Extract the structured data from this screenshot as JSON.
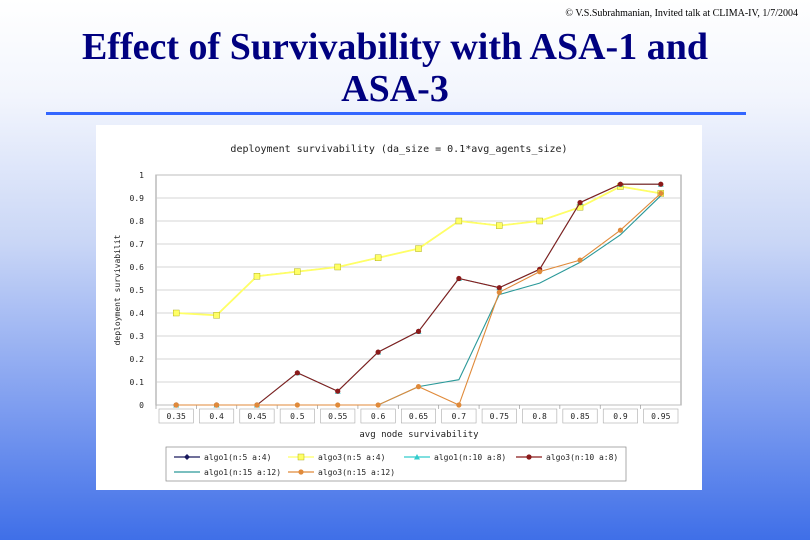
{
  "slide": {
    "copyright": "© V.S.Subrahmanian, Invited talk at CLIMA-IV, 1/7/2004",
    "title_line1": "Effect of Survivability with ASA-1 and",
    "title_line2": "ASA-3"
  },
  "chart_data": {
    "type": "line",
    "title": "deployment survivability (da_size = 0.1*avg_agents_size)",
    "xlabel": "avg node survivability",
    "ylabel": "deployment survivabilit",
    "categories": [
      "0.35",
      "0.4",
      "0.45",
      "0.5",
      "0.55",
      "0.6",
      "0.65",
      "0.7",
      "0.75",
      "0.8",
      "0.85",
      "0.9",
      "0.95"
    ],
    "y_ticks": [
      "0",
      "0.1",
      "0.2",
      "0.3",
      "0.4",
      "0.5",
      "0.6",
      "0.7",
      "0.8",
      "0.9",
      "1"
    ],
    "ylim": [
      0,
      1
    ],
    "grid": true,
    "legend_position": "bottom",
    "series": [
      {
        "name": "algo1(n:5 a:4)",
        "color": "#1a1a5e",
        "marker": "diamond",
        "values": [
          0.4,
          0.39,
          0.56,
          0.58,
          0.6,
          0.64,
          0.68,
          0.8,
          0.78,
          0.8,
          0.86,
          0.95,
          0.92
        ]
      },
      {
        "name": "algo3(n:5 a:4)",
        "color": "#ffff66",
        "marker": "square",
        "values": [
          0.4,
          0.39,
          0.56,
          0.58,
          0.6,
          0.64,
          0.68,
          0.8,
          0.78,
          0.8,
          0.86,
          0.95,
          0.92
        ]
      },
      {
        "name": "algo1(n:10 a:8)",
        "color": "#33cccc",
        "marker": "triangle",
        "values": [
          0.0,
          0.0,
          0.0,
          0.14,
          0.06,
          0.23,
          0.32,
          0.55,
          0.51,
          0.59,
          0.88,
          0.96,
          0.96
        ]
      },
      {
        "name": "algo3(n:10 a:8)",
        "color": "#8b1a1a",
        "marker": "circle",
        "values": [
          0.0,
          0.0,
          0.0,
          0.14,
          0.06,
          0.23,
          0.32,
          0.55,
          0.51,
          0.59,
          0.88,
          0.96,
          0.96
        ]
      },
      {
        "name": "algo1(n:15 a:12)",
        "color": "#2b9999",
        "marker": "none",
        "values": [
          0.0,
          0.0,
          0.0,
          0.0,
          0.0,
          0.0,
          0.08,
          0.11,
          0.48,
          0.53,
          0.62,
          0.74,
          0.91
        ]
      },
      {
        "name": "algo3(n:15 a:12)",
        "color": "#e08a3a",
        "marker": "circle",
        "values": [
          0.0,
          0.0,
          0.0,
          0.0,
          0.0,
          0.0,
          0.08,
          0.0,
          0.49,
          0.58,
          0.63,
          0.76,
          0.92
        ]
      }
    ]
  }
}
